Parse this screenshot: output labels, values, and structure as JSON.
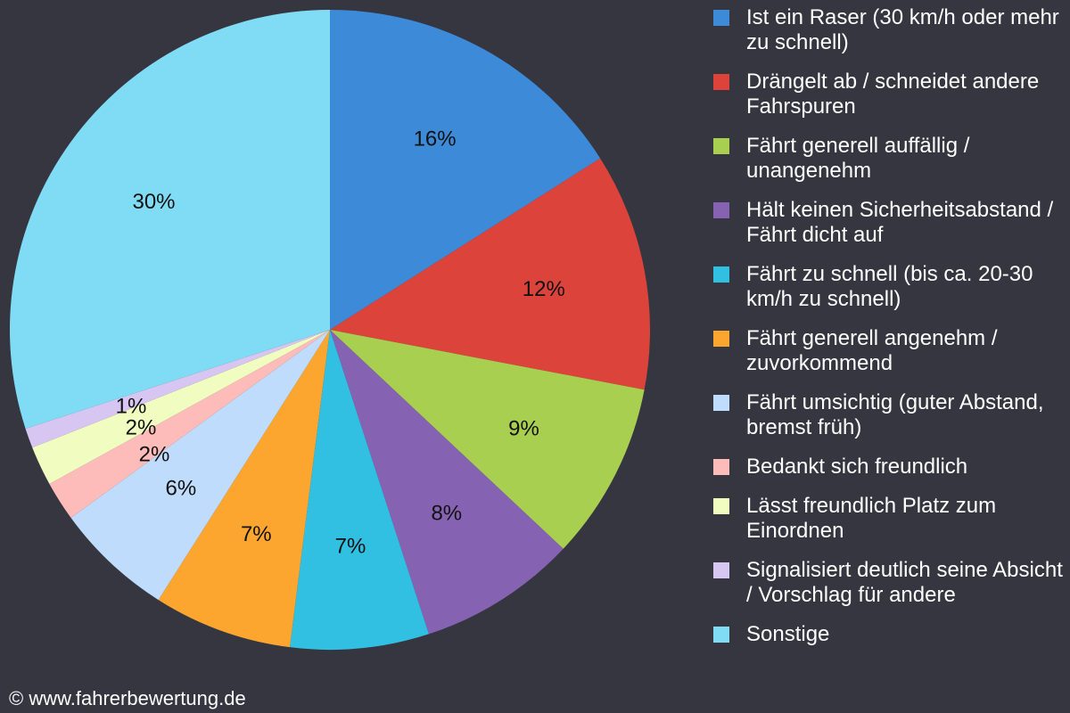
{
  "chart_data": {
    "type": "pie",
    "slices": [
      {
        "name": "Ist ein Raser (30 km/h oder mehr zu schnell)",
        "value": 16,
        "label": "16%",
        "color": "#3d8ad9"
      },
      {
        "name": "Drängelt ab / schneidet andere Fahrspuren",
        "value": 12,
        "label": "12%",
        "color": "#db433b"
      },
      {
        "name": "Fährt generell auffällig / unangenehm",
        "value": 9,
        "label": "9%",
        "color": "#a8cf4f"
      },
      {
        "name": "Hält keinen Sicherheitsabstand / Fährt dicht auf",
        "value": 8,
        "label": "8%",
        "color": "#8662b3"
      },
      {
        "name": "Fährt zu schnell (bis ca. 20-30 km/h zu schnell)",
        "value": 7,
        "label": "7%",
        "color": "#31bfe2"
      },
      {
        "name": "Fährt generell angenehm / zuvorkommend",
        "value": 7,
        "label": "7%",
        "color": "#fca52f"
      },
      {
        "name": "Fährt umsichtig (guter Abstand, bremst früh)",
        "value": 6,
        "label": "6%",
        "color": "#bfdcfd"
      },
      {
        "name": "Bedankt sich freundlich",
        "value": 2,
        "label": "2%",
        "color": "#fdbcb9"
      },
      {
        "name": "Lässt freundlich Platz zum Einordnen",
        "value": 2,
        "label": "2%",
        "color": "#f1fcc0"
      },
      {
        "name": "Signalisiert deutlich seine Absicht / Vorschlag für andere",
        "value": 1,
        "label": "1%",
        "color": "#d7c6f2"
      },
      {
        "name": "Sonstige",
        "value": 30,
        "label": "30%",
        "color": "#80dcf4"
      }
    ],
    "legend_position": "right",
    "start_angle_deg": 0,
    "direction": "clockwise"
  },
  "footer": {
    "copyright": "© www.fahrerbewertung.de"
  },
  "colors": {
    "background": "#353640",
    "label_text": "#111111",
    "legend_text": "#ffffff"
  }
}
